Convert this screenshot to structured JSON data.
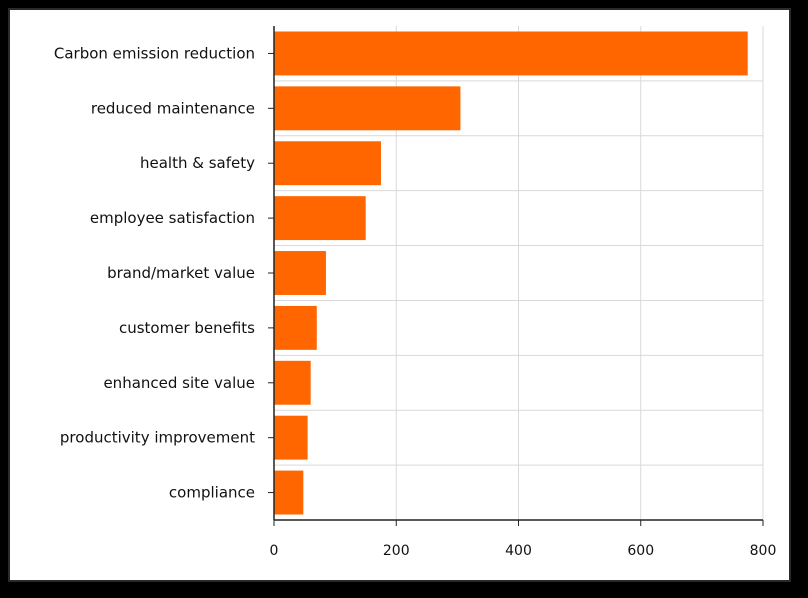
{
  "chart_data": {
    "type": "bar",
    "orientation": "horizontal",
    "title": "",
    "xlabel": "",
    "ylabel": "",
    "categories": [
      "Carbon emission reduction",
      "reduced maintenance",
      "health & safety",
      "employee satisfaction",
      "brand/market value",
      "customer benefits",
      "enhanced site value",
      "productivity improvement",
      "compliance"
    ],
    "values": [
      775,
      305,
      175,
      150,
      85,
      70,
      60,
      55,
      48
    ],
    "xlim": [
      0,
      800
    ],
    "xticks": [
      0,
      200,
      400,
      600,
      800
    ],
    "xtick_labels": [
      "0",
      "200",
      "400",
      "600",
      "800"
    ],
    "grid": true,
    "legend": "none",
    "colors": {
      "bar": "#ff6600",
      "background": "#ffffff",
      "frame": "#000000",
      "grid": "#d9d9d9",
      "axis": "#222222"
    }
  }
}
